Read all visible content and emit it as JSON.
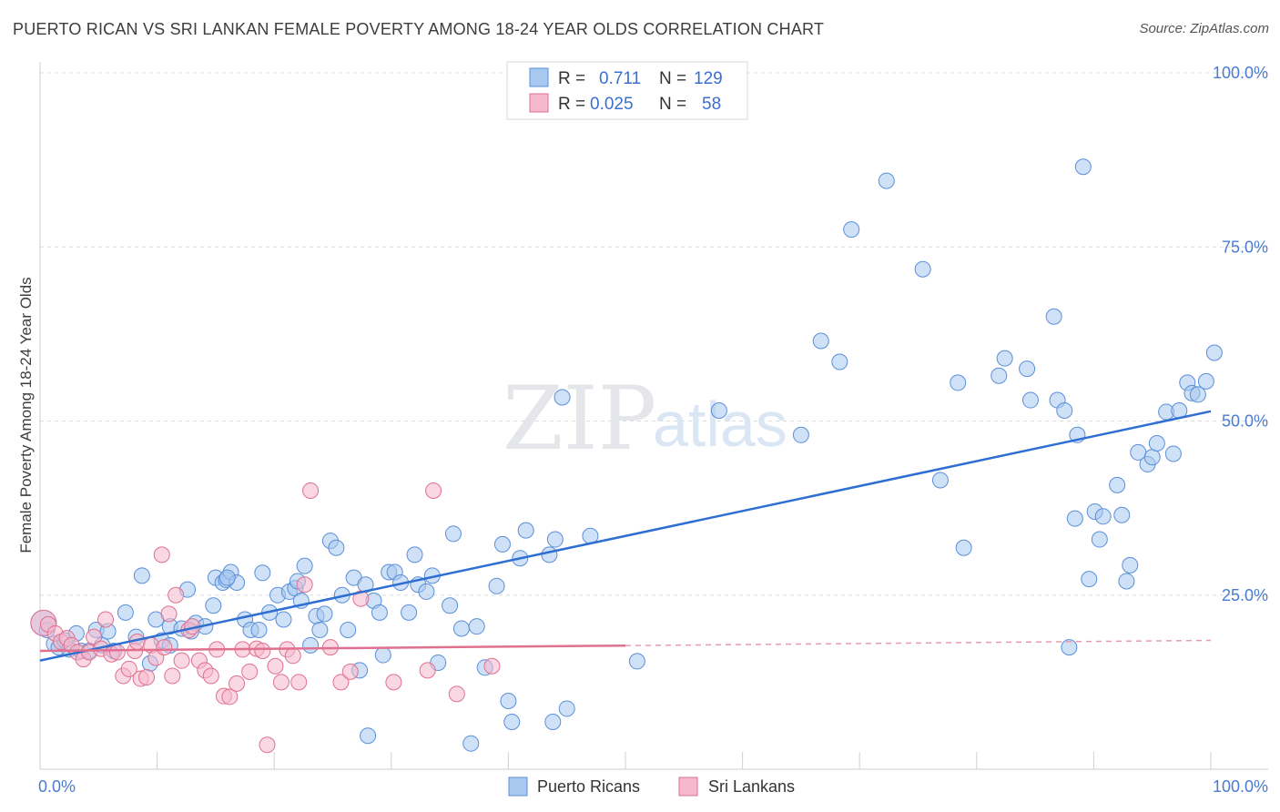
{
  "title": "PUERTO RICAN VS SRI LANKAN FEMALE POVERTY AMONG 18-24 YEAR OLDS CORRELATION CHART",
  "source": "Source: ZipAtlas.com",
  "watermark": {
    "zip": "ZIP",
    "atlas": "atlas"
  },
  "legend": {
    "rows": [
      {
        "r_label": "R =",
        "r_value": "0.711",
        "n_label": "N =",
        "n_value": "129",
        "color": "#a8c8f0"
      },
      {
        "r_label": "R =",
        "r_value": "0.025",
        "n_label": "N =",
        "n_value": "58",
        "color": "#f5b8cc"
      }
    ]
  },
  "chart_data": {
    "type": "scatter",
    "xlabel": "",
    "ylabel": "Female Poverty Among 18-24 Year Olds",
    "xlim": [
      0,
      100
    ],
    "ylim": [
      0,
      100
    ],
    "x_tick_labels": {
      "left": "0.0%",
      "right": "100.0%"
    },
    "y_ticks": [
      25,
      50,
      75,
      100
    ],
    "y_tick_labels": [
      "25.0%",
      "50.0%",
      "75.0%",
      "100.0%"
    ],
    "grid": true,
    "legend_position": "top-center",
    "series": [
      {
        "name": "Puerto Ricans",
        "color": "#5b8fd8",
        "fill": "#a8c8f0",
        "trend": {
          "x0": 0,
          "y0": 15.6,
          "x1": 100,
          "y1": 51.4,
          "style": "solid"
        },
        "points": [
          [
            0.3,
            21
          ],
          [
            0.6,
            20
          ],
          [
            1.2,
            18
          ],
          [
            1.6,
            17.5
          ],
          [
            2.1,
            18.5
          ],
          [
            2.5,
            17.2
          ],
          [
            3.1,
            19.5
          ],
          [
            3.5,
            17
          ],
          [
            4.2,
            17
          ],
          [
            4.8,
            20
          ],
          [
            5.3,
            17.8
          ],
          [
            5.8,
            19.8
          ],
          [
            6.3,
            17
          ],
          [
            7.3,
            22.5
          ],
          [
            8.2,
            19
          ],
          [
            8.7,
            27.8
          ],
          [
            9.4,
            15.2
          ],
          [
            9.9,
            21.5
          ],
          [
            10.4,
            18.5
          ],
          [
            11.1,
            17.8
          ],
          [
            11.1,
            20.5
          ],
          [
            12.1,
            20.2
          ],
          [
            12.6,
            25.8
          ],
          [
            12.9,
            19.8
          ],
          [
            13.3,
            21
          ],
          [
            14.1,
            20.5
          ],
          [
            14.8,
            23.5
          ],
          [
            15.0,
            27.5
          ],
          [
            15.6,
            26.8
          ],
          [
            15.9,
            27.2
          ],
          [
            16.3,
            28.3
          ],
          [
            16.8,
            26.8
          ],
          [
            17.5,
            21.5
          ],
          [
            18.0,
            20
          ],
          [
            18.7,
            20
          ],
          [
            19.0,
            28.2
          ],
          [
            19.6,
            22.5
          ],
          [
            20.3,
            25
          ],
          [
            20.8,
            21.5
          ],
          [
            21.3,
            25.5
          ],
          [
            21.8,
            26
          ],
          [
            22.3,
            24.2
          ],
          [
            22.6,
            29.2
          ],
          [
            23.1,
            17.8
          ],
          [
            23.6,
            22
          ],
          [
            23.9,
            20
          ],
          [
            24.3,
            22.3
          ],
          [
            24.8,
            32.8
          ],
          [
            25.3,
            31.8
          ],
          [
            25.8,
            25
          ],
          [
            26.3,
            20
          ],
          [
            26.8,
            27.5
          ],
          [
            27.3,
            14.2
          ],
          [
            27.8,
            26.5
          ],
          [
            28.0,
            4.8
          ],
          [
            28.5,
            24.2
          ],
          [
            29.0,
            22.5
          ],
          [
            29.3,
            16.4
          ],
          [
            29.8,
            28.3
          ],
          [
            30.3,
            28.3
          ],
          [
            30.8,
            26.8
          ],
          [
            31.5,
            22.5
          ],
          [
            32.0,
            30.8
          ],
          [
            32.3,
            26.5
          ],
          [
            33.0,
            25.5
          ],
          [
            33.5,
            27.8
          ],
          [
            34.0,
            15.3
          ],
          [
            35.0,
            23.5
          ],
          [
            35.3,
            33.8
          ],
          [
            36.0,
            20.2
          ],
          [
            36.8,
            3.7
          ],
          [
            37.3,
            20.5
          ],
          [
            38.0,
            14.6
          ],
          [
            39.0,
            26.3
          ],
          [
            39.5,
            32.3
          ],
          [
            40.0,
            9.8
          ],
          [
            40.3,
            6.8
          ],
          [
            41.0,
            30.3
          ],
          [
            41.5,
            34.3
          ],
          [
            43.5,
            30.8
          ],
          [
            44.0,
            33
          ],
          [
            43.8,
            6.8
          ],
          [
            44.6,
            53.4
          ],
          [
            45.0,
            8.7
          ],
          [
            47.0,
            33.5
          ],
          [
            51.0,
            15.5
          ],
          [
            58.0,
            51.5
          ],
          [
            65.0,
            48
          ],
          [
            66.7,
            61.5
          ],
          [
            68.3,
            58.5
          ],
          [
            69.3,
            77.5
          ],
          [
            72.3,
            84.5
          ],
          [
            75.4,
            71.8
          ],
          [
            76.9,
            41.5
          ],
          [
            78.4,
            55.5
          ],
          [
            78.9,
            31.8
          ],
          [
            81.9,
            56.5
          ],
          [
            82.4,
            59
          ],
          [
            84.3,
            57.5
          ],
          [
            84.6,
            53
          ],
          [
            86.6,
            65
          ],
          [
            86.9,
            53
          ],
          [
            87.5,
            51.5
          ],
          [
            87.9,
            17.5
          ],
          [
            88.4,
            36
          ],
          [
            88.6,
            48
          ],
          [
            89.1,
            86.5
          ],
          [
            89.6,
            27.3
          ],
          [
            90.1,
            37
          ],
          [
            90.5,
            33
          ],
          [
            90.8,
            36.3
          ],
          [
            92.0,
            40.8
          ],
          [
            92.4,
            36.5
          ],
          [
            92.8,
            27
          ],
          [
            93.1,
            29.3
          ],
          [
            93.8,
            45.5
          ],
          [
            94.6,
            43.8
          ],
          [
            95.0,
            44.8
          ],
          [
            95.4,
            46.8
          ],
          [
            96.2,
            51.3
          ],
          [
            96.8,
            45.3
          ],
          [
            97.3,
            51.5
          ],
          [
            98.0,
            55.5
          ],
          [
            98.4,
            54
          ],
          [
            98.9,
            53.8
          ],
          [
            99.6,
            55.7
          ],
          [
            100.3,
            59.8
          ],
          [
            22.0,
            27
          ],
          [
            16.0,
            27.5
          ]
        ]
      },
      {
        "name": "Sri Lankans",
        "color": "#e0708f",
        "fill": "#f5b8cc",
        "trend": {
          "x0": 0,
          "y0": 17.0,
          "x1": 100,
          "y1": 18.5,
          "style": "solid-then-dashed",
          "solid_until": 50
        },
        "points": [
          [
            0.3,
            21
          ],
          [
            0.7,
            20.8
          ],
          [
            1.3,
            19.5
          ],
          [
            1.8,
            18.3
          ],
          [
            2.3,
            18.8
          ],
          [
            2.7,
            17.8
          ],
          [
            3.2,
            16.8
          ],
          [
            3.7,
            15.8
          ],
          [
            4.2,
            16.8
          ],
          [
            4.6,
            19
          ],
          [
            5.2,
            17.3
          ],
          [
            5.6,
            21.5
          ],
          [
            6.1,
            16.5
          ],
          [
            6.6,
            16.8
          ],
          [
            7.1,
            13.4
          ],
          [
            7.6,
            14.4
          ],
          [
            8.1,
            17
          ],
          [
            8.3,
            18.3
          ],
          [
            8.6,
            13
          ],
          [
            9.1,
            13.2
          ],
          [
            9.5,
            17.8
          ],
          [
            9.9,
            16
          ],
          [
            10.4,
            30.8
          ],
          [
            10.6,
            17.5
          ],
          [
            11.0,
            22.3
          ],
          [
            11.3,
            13.4
          ],
          [
            11.6,
            25
          ],
          [
            12.1,
            15.6
          ],
          [
            12.7,
            20
          ],
          [
            13.0,
            20.5
          ],
          [
            13.6,
            15.6
          ],
          [
            14.1,
            14.2
          ],
          [
            14.6,
            13.4
          ],
          [
            15.1,
            17.2
          ],
          [
            15.7,
            10.5
          ],
          [
            16.2,
            10.4
          ],
          [
            16.8,
            12.3
          ],
          [
            17.3,
            17.2
          ],
          [
            17.9,
            14
          ],
          [
            18.5,
            17.3
          ],
          [
            19.0,
            17
          ],
          [
            19.4,
            3.5
          ],
          [
            20.1,
            14.8
          ],
          [
            20.6,
            12.5
          ],
          [
            21.1,
            17.2
          ],
          [
            21.6,
            16.3
          ],
          [
            22.1,
            12.5
          ],
          [
            22.6,
            26.5
          ],
          [
            23.1,
            40
          ],
          [
            24.8,
            17.5
          ],
          [
            25.7,
            12.5
          ],
          [
            26.5,
            14
          ],
          [
            27.4,
            24.5
          ],
          [
            30.2,
            12.5
          ],
          [
            33.1,
            14.2
          ],
          [
            33.6,
            40
          ],
          [
            35.6,
            10.8
          ],
          [
            38.6,
            14.8
          ]
        ]
      }
    ]
  },
  "bottom_legend": {
    "items": [
      {
        "label": "Puerto Ricans",
        "color": "#a8c8f0"
      },
      {
        "label": "Sri Lankans",
        "color": "#f5b8cc"
      }
    ]
  }
}
